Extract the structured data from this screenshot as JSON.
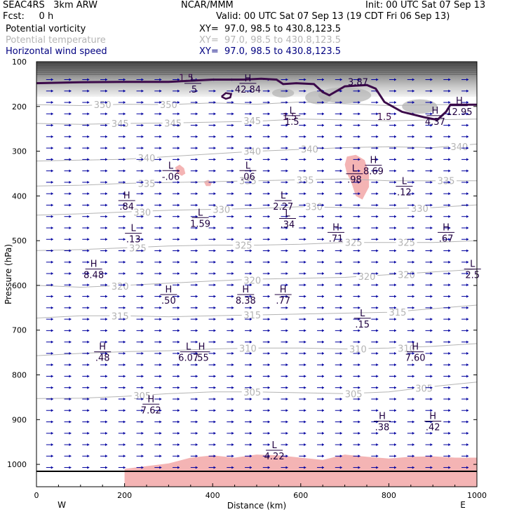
{
  "header": {
    "model": "SEAC4RS   3km ARW",
    "org": "NCAR/MMM",
    "init": "Init: 00 UTC Sat 07 Sep 13",
    "fcst": "Fcst:     0 h",
    "valid": "Valid: 00 UTC Sat 07 Sep 13 (19 CDT Fri 06 Sep 13)",
    "fields": [
      {
        "name": "Potential vorticity",
        "xy": "XY=  97.0, 98.5 to 430.8,123.5",
        "color": "#000000"
      },
      {
        "name": "Potential temperature",
        "xy": "XY=  97.0, 98.5 to 430.8,123.5",
        "color": "#b4b4b4"
      },
      {
        "name": "Horizontal wind speed",
        "xy": "XY=  97.0, 98.5 to 430.8,123.5",
        "color": "#000080"
      }
    ]
  },
  "chart_data": {
    "type": "contour",
    "xlabel": "Distance (km)",
    "ylabel": "Pressure (hPa)",
    "xlim": [
      0,
      1000
    ],
    "ylim": [
      1050,
      100
    ],
    "x_ticks": [
      0,
      200,
      400,
      600,
      800,
      1000
    ],
    "y_ticks": [
      100,
      200,
      300,
      400,
      500,
      600,
      700,
      800,
      900,
      1000
    ],
    "x_end_labels": {
      "left": "W",
      "right": "E"
    },
    "colors": {
      "theta": "#b4b4b4",
      "pv": "#3c0a4a",
      "wind": "#0000a0",
      "negative_pv": "#f4b4b4",
      "hl": "#200040"
    },
    "theta_contours": [
      {
        "label": "350",
        "points": [
          [
            0,
            196
          ],
          [
            100,
            198
          ],
          [
            200,
            195
          ],
          [
            300,
            196
          ],
          [
            400,
            192
          ],
          [
            500,
            195
          ],
          [
            600,
            190
          ],
          [
            700,
            194
          ],
          [
            800,
            198
          ],
          [
            900,
            196
          ],
          [
            1000,
            196
          ]
        ],
        "label_at": [
          [
            150,
            196
          ],
          [
            300,
            196
          ]
        ]
      },
      {
        "label": "345",
        "points": [
          [
            0,
            238
          ],
          [
            100,
            240
          ],
          [
            200,
            238
          ],
          [
            300,
            237
          ],
          [
            400,
            235
          ],
          [
            500,
            233
          ],
          [
            600,
            228
          ],
          [
            700,
            230
          ],
          [
            800,
            232
          ],
          [
            900,
            230
          ],
          [
            1000,
            228
          ]
        ],
        "label_at": [
          [
            190,
            238
          ],
          [
            310,
            237
          ],
          [
            490,
            232
          ]
        ]
      },
      {
        "label": "340",
        "points": [
          [
            0,
            322
          ],
          [
            100,
            320
          ],
          [
            200,
            318
          ],
          [
            300,
            312
          ],
          [
            400,
            306
          ],
          [
            500,
            300
          ],
          [
            600,
            296
          ],
          [
            700,
            292
          ],
          [
            800,
            290
          ],
          [
            900,
            292
          ],
          [
            1000,
            284
          ]
        ],
        "label_at": [
          [
            250,
            315
          ],
          [
            490,
            300
          ],
          [
            620,
            295
          ],
          [
            960,
            290
          ]
        ]
      },
      {
        "label": "335",
        "points": [
          [
            0,
            378
          ],
          [
            100,
            376
          ],
          [
            200,
            372
          ],
          [
            300,
            370
          ],
          [
            400,
            368
          ],
          [
            500,
            366
          ],
          [
            600,
            364
          ],
          [
            700,
            362
          ],
          [
            800,
            366
          ],
          [
            900,
            366
          ],
          [
            1000,
            366
          ]
        ],
        "label_at": [
          [
            250,
            372
          ],
          [
            480,
            366
          ],
          [
            610,
            364
          ],
          [
            930,
            366
          ]
        ]
      },
      {
        "label": "330",
        "points": [
          [
            0,
            443
          ],
          [
            100,
            440
          ],
          [
            200,
            436
          ],
          [
            300,
            432
          ],
          [
            400,
            430
          ],
          [
            500,
            428
          ],
          [
            600,
            424
          ],
          [
            700,
            426
          ],
          [
            800,
            428
          ],
          [
            900,
            426
          ],
          [
            1000,
            420
          ]
        ],
        "label_at": [
          [
            240,
            436
          ],
          [
            420,
            430
          ],
          [
            630,
            424
          ],
          [
            870,
            428
          ]
        ]
      },
      {
        "label": "325",
        "points": [
          [
            0,
            522
          ],
          [
            100,
            520
          ],
          [
            200,
            516
          ],
          [
            300,
            512
          ],
          [
            400,
            510
          ],
          [
            500,
            510
          ],
          [
            600,
            508
          ],
          [
            700,
            504
          ],
          [
            800,
            504
          ],
          [
            900,
            504
          ],
          [
            1000,
            500
          ]
        ],
        "label_at": [
          [
            230,
            516
          ],
          [
            470,
            510
          ],
          [
            720,
            504
          ],
          [
            840,
            504
          ]
        ]
      },
      {
        "label": "320",
        "points": [
          [
            0,
            600
          ],
          [
            100,
            604
          ],
          [
            200,
            600
          ],
          [
            300,
            595
          ],
          [
            400,
            590
          ],
          [
            500,
            586
          ],
          [
            600,
            584
          ],
          [
            700,
            582
          ],
          [
            800,
            576
          ],
          [
            900,
            570
          ],
          [
            1000,
            564
          ]
        ],
        "label_at": [
          [
            190,
            602
          ],
          [
            490,
            588
          ],
          [
            750,
            580
          ],
          [
            840,
            576
          ]
        ]
      },
      {
        "label": "315",
        "points": [
          [
            0,
            673
          ],
          [
            100,
            668
          ],
          [
            200,
            668
          ],
          [
            300,
            670
          ],
          [
            400,
            668
          ],
          [
            500,
            666
          ],
          [
            600,
            664
          ],
          [
            700,
            662
          ],
          [
            800,
            660
          ],
          [
            900,
            652
          ],
          [
            1000,
            644
          ]
        ],
        "label_at": [
          [
            190,
            668
          ],
          [
            490,
            666
          ],
          [
            820,
            660
          ]
        ]
      },
      {
        "label": "310",
        "points": [
          [
            0,
            757
          ],
          [
            100,
            752
          ],
          [
            200,
            748
          ],
          [
            300,
            746
          ],
          [
            400,
            742
          ],
          [
            500,
            740
          ],
          [
            600,
            740
          ],
          [
            700,
            742
          ],
          [
            800,
            740
          ],
          [
            900,
            736
          ],
          [
            1000,
            730
          ]
        ],
        "label_at": [
          [
            480,
            740
          ],
          [
            730,
            742
          ],
          [
            840,
            740
          ]
        ]
      },
      {
        "label": "305",
        "points": [
          [
            0,
            853
          ],
          [
            100,
            852
          ],
          [
            200,
            848
          ],
          [
            300,
            842
          ],
          [
            400,
            838
          ],
          [
            500,
            838
          ],
          [
            600,
            840
          ],
          [
            700,
            842
          ],
          [
            800,
            838
          ],
          [
            900,
            826
          ],
          [
            1000,
            816
          ]
        ],
        "label_at": [
          [
            240,
            846
          ],
          [
            490,
            838
          ],
          [
            720,
            842
          ],
          [
            880,
            830
          ]
        ]
      }
    ],
    "pv_contour_label": "1.5",
    "pv_label_at": [
      [
        340,
        135
      ],
      [
        575,
        222
      ],
      [
        790,
        222
      ]
    ],
    "pv_contour": [
      [
        0,
        148
      ],
      [
        100,
        146
      ],
      [
        200,
        145
      ],
      [
        300,
        145
      ],
      [
        400,
        140
      ],
      [
        470,
        140
      ],
      [
        510,
        138
      ],
      [
        545,
        140
      ],
      [
        560,
        150
      ],
      [
        590,
        148
      ],
      [
        630,
        150
      ],
      [
        650,
        168
      ],
      [
        665,
        175
      ],
      [
        700,
        155
      ],
      [
        750,
        152
      ],
      [
        770,
        160
      ],
      [
        790,
        190
      ],
      [
        830,
        212
      ],
      [
        880,
        224
      ],
      [
        910,
        230
      ],
      [
        930,
        212
      ],
      [
        940,
        196
      ],
      [
        1000,
        196
      ]
    ],
    "pv_small_contour": [
      [
        420,
        178
      ],
      [
        430,
        170
      ],
      [
        442,
        172
      ],
      [
        440,
        180
      ],
      [
        430,
        183
      ],
      [
        420,
        178
      ]
    ],
    "negative_pv_regions": [
      {
        "points": [
          [
            700,
            330
          ],
          [
            705,
            312
          ],
          [
            725,
            308
          ],
          [
            745,
            320
          ],
          [
            755,
            350
          ],
          [
            755,
            380
          ],
          [
            740,
            408
          ],
          [
            725,
            400
          ],
          [
            715,
            370
          ],
          [
            705,
            350
          ],
          [
            700,
            330
          ]
        ]
      },
      {
        "points": [
          [
            315,
            336
          ],
          [
            325,
            330
          ],
          [
            335,
            338
          ],
          [
            338,
            350
          ],
          [
            330,
            355
          ],
          [
            318,
            348
          ],
          [
            315,
            336
          ]
        ]
      },
      {
        "points": [
          [
            380,
            368
          ],
          [
            390,
            364
          ],
          [
            398,
            370
          ],
          [
            395,
            378
          ],
          [
            385,
            378
          ],
          [
            380,
            368
          ]
        ]
      }
    ],
    "surface_negative_pv": [
      [
        200,
        1010
      ],
      [
        300,
        998
      ],
      [
        350,
        985
      ],
      [
        400,
        980
      ],
      [
        450,
        985
      ],
      [
        500,
        978
      ],
      [
        550,
        980
      ],
      [
        600,
        985
      ],
      [
        650,
        990
      ],
      [
        700,
        978
      ],
      [
        750,
        983
      ],
      [
        800,
        987
      ],
      [
        850,
        983
      ],
      [
        900,
        982
      ],
      [
        950,
        985
      ],
      [
        1000,
        985
      ]
    ],
    "hl_labels": [
      {
        "t": "H",
        "v": "42.84",
        "x": 480,
        "y": 150
      },
      {
        "t": "L",
        "v": ".5",
        "x": 355,
        "y": 150
      },
      {
        "t": "",
        "v": "3.87",
        "x": 730,
        "y": 134
      },
      {
        "t": "H",
        "v": "12.95",
        "x": 960,
        "y": 200
      },
      {
        "t": "H",
        "v": "4.37",
        "x": 905,
        "y": 222
      },
      {
        "t": "L",
        "v": "1.5",
        "x": 580,
        "y": 222
      },
      {
        "t": "H",
        "v": "8.69",
        "x": 765,
        "y": 333
      },
      {
        "t": "L",
        "v": ".98",
        "x": 722,
        "y": 352
      },
      {
        "t": "L",
        "v": "-.06",
        "x": 305,
        "y": 345
      },
      {
        "t": "L",
        "v": ".06",
        "x": 480,
        "y": 345
      },
      {
        "t": "L",
        "v": ".12",
        "x": 835,
        "y": 380
      },
      {
        "t": "H",
        "v": ".84",
        "x": 205,
        "y": 412
      },
      {
        "t": "L",
        "v": "2.27",
        "x": 560,
        "y": 412
      },
      {
        "t": "L",
        "v": "1.59",
        "x": 372,
        "y": 450
      },
      {
        "t": "L",
        "v": ".34",
        "x": 570,
        "y": 452
      },
      {
        "t": "H",
        "v": ".71",
        "x": 680,
        "y": 483
      },
      {
        "t": "H",
        "v": ".67",
        "x": 930,
        "y": 483
      },
      {
        "t": "L",
        "v": ".13",
        "x": 220,
        "y": 485
      },
      {
        "t": "H",
        "v": "8.48",
        "x": 130,
        "y": 565
      },
      {
        "t": "L",
        "v": "2.5",
        "x": 990,
        "y": 565
      },
      {
        "t": "H",
        "v": ".50",
        "x": 300,
        "y": 622
      },
      {
        "t": "H",
        "v": "8.38",
        "x": 475,
        "y": 622
      },
      {
        "t": "H",
        "v": ".77",
        "x": 560,
        "y": 622
      },
      {
        "t": "L",
        "v": ".15",
        "x": 740,
        "y": 675
      },
      {
        "t": "H",
        "v": ".48",
        "x": 150,
        "y": 750
      },
      {
        "t": "L",
        "v": "6.07",
        "x": 345,
        "y": 750
      },
      {
        "t": "H",
        "v": ".55",
        "x": 375,
        "y": 750
      },
      {
        "t": "H",
        "v": "7.60",
        "x": 860,
        "y": 750
      },
      {
        "t": "H",
        "v": "7.62",
        "x": 260,
        "y": 867
      },
      {
        "t": "H",
        "v": ".38",
        "x": 785,
        "y": 905
      },
      {
        "t": "H",
        "v": ".42",
        "x": 900,
        "y": 905
      },
      {
        "t": "L",
        "v": "4.22",
        "x": 540,
        "y": 970
      }
    ]
  }
}
